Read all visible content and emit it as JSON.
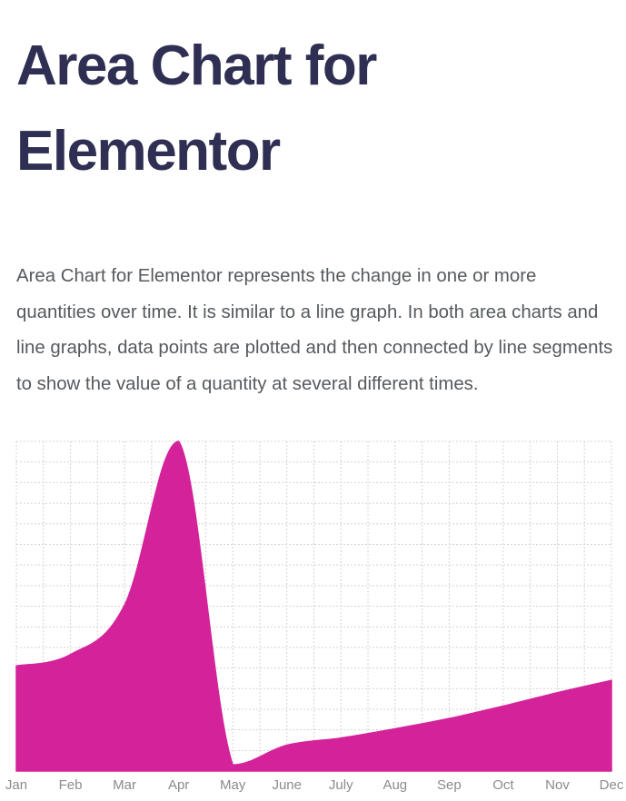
{
  "page": {
    "title": "Area Chart for Elementor",
    "description": "Area Chart for Elementor represents the change in one or more quantities over time. It is similar to a line graph. In both area charts and line graphs, data points are plotted and then connected by line segments to show the value of a quantity at several different times."
  },
  "chart_data": {
    "type": "area",
    "title": "",
    "xlabel": "",
    "ylabel": "",
    "categories": [
      "Jan",
      "Feb",
      "Mar",
      "Apr",
      "May",
      "June",
      "July",
      "Aug",
      "Sep",
      "Oct",
      "Nov",
      "Dec"
    ],
    "series": [
      {
        "values": [
          51,
          56.5,
          80.5,
          160,
          3,
          12.5,
          16,
          20.5,
          25.5,
          31.5,
          38,
          44
        ],
        "color": "#d4239a"
      }
    ],
    "ylim": [
      0,
      160
    ],
    "y_grid_lines": 16,
    "grid": true,
    "grid_color": "#d4d4d4",
    "y_tick_labels_shown": false,
    "legend": "none",
    "curve": "smooth"
  }
}
